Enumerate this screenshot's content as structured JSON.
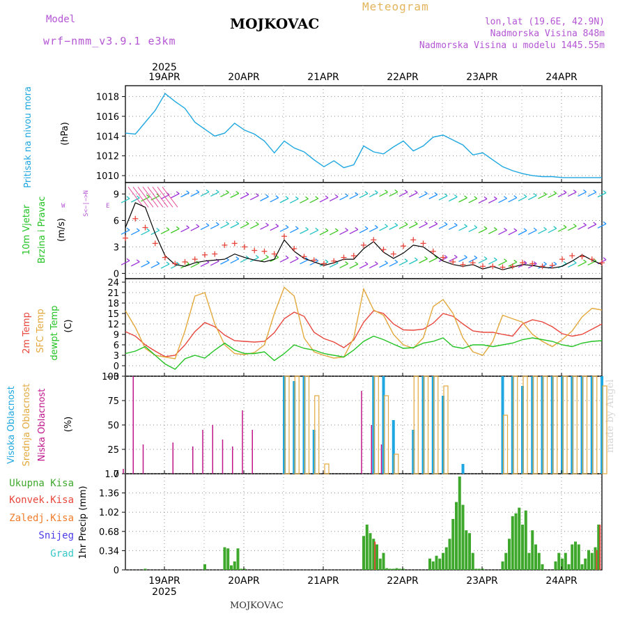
{
  "header": {
    "model_label": "Model",
    "model_name": "wrf−nmm_v3.9.1  e3km",
    "station": "MOJKOVAC",
    "meteogram_label": "Meteogram",
    "lonlat": "lon,lat (19.6E, 42.9N)",
    "elevation": "Nadmorska Visina 848m",
    "elevation_model": "Nadmorska Visina u modelu 1445.55m"
  },
  "footer": {
    "station": "MOJKOVAC",
    "watermark": "made by Angel"
  },
  "time_axis": {
    "year_label": "2025",
    "days": [
      "19APR",
      "20APR",
      "21APR",
      "22APR",
      "23APR",
      "24APR"
    ]
  },
  "colors": {
    "pressure": "#1ea7e0",
    "wind_speed": "#000000",
    "wind_gust": "#e8463c",
    "temp2m": "#e8463c",
    "sfc_temp": "#e3a83c",
    "dewpt": "#22c322",
    "cloud_high": "#1ea7e0",
    "cloud_mid": "#e3a83c",
    "cloud_low": "#c0168c",
    "precip_total": "#3ea82c",
    "precip_conv": "#e8463c",
    "precip_frozen": "#f07c2c",
    "snow": "#4a3ce8",
    "grad": "#37c7c7"
  },
  "panels": {
    "pressure": {
      "label1": "Pritisak na nivou mora",
      "unit": "(hPa)"
    },
    "wind": {
      "label1": "10m Vjetar",
      "label2": "Brzina i Pravac",
      "unit": "(m/s)",
      "compass_ns": "S<−|−>N",
      "compass_w": "W",
      "compass_e": "E"
    },
    "temp": {
      "label1": "2m Temp",
      "label2": "SFC Temp",
      "label3": "dewpt Temp",
      "unit": "(C)"
    },
    "cloud": {
      "label1": "Visoka Oblacnost",
      "label2": "Srednja Oblacnost",
      "label3": "Niska Oblacnost",
      "unit": "(%)"
    },
    "precip": {
      "label_unit": "1hr Precip (mm)",
      "legend": [
        "Ukupna Kisa",
        "Konvek.Kisa",
        "Zaledj.Kisa",
        "Snijeg",
        "Grad"
      ]
    }
  },
  "chart_data": [
    {
      "type": "line",
      "title": "Pritisak na nivou mora",
      "ylabel": "(hPa)",
      "ylim": [
        1009.3,
        1019.1
      ],
      "yticks": [
        1010,
        1012,
        1014,
        1016,
        1018
      ],
      "x_hours": [
        0,
        3,
        6,
        9,
        12,
        15,
        18,
        21,
        24,
        27,
        30,
        33,
        36,
        39,
        42,
        45,
        48,
        51,
        54,
        57,
        60,
        63,
        66,
        69,
        72,
        75,
        78,
        81,
        84,
        87,
        90,
        93,
        96,
        99,
        102,
        105,
        108,
        111,
        114,
        117,
        120,
        123,
        126,
        129,
        132,
        135,
        138,
        141,
        144
      ],
      "series": [
        {
          "name": "MSLP",
          "values": [
            1014.3,
            1014.2,
            1015.4,
            1016.6,
            1018.3,
            1017.5,
            1016.8,
            1015.4,
            1014.7,
            1014.0,
            1014.3,
            1015.3,
            1014.6,
            1014.2,
            1013.5,
            1012.3,
            1013.5,
            1012.8,
            1012.4,
            1011.6,
            1010.9,
            1011.5,
            1010.8,
            1011.1,
            1013.0,
            1012.4,
            1012.2,
            1012.9,
            1013.5,
            1012.5,
            1013.0,
            1013.9,
            1014.1,
            1013.6,
            1013.1,
            1012.1,
            1012.3,
            1011.6,
            1010.9,
            1010.5,
            1010.2,
            1010.0,
            1009.9,
            1009.9,
            1009.8,
            1009.8,
            1009.8,
            1009.8,
            1009.8
          ]
        }
      ]
    },
    {
      "type": "line",
      "title": "10m Vjetar Brzina i Pravac",
      "ylabel": "(m/s)",
      "ylim": [
        -0.6,
        10.3
      ],
      "yticks": [
        0,
        3,
        6,
        9
      ],
      "x_hours": [
        0,
        3,
        6,
        9,
        12,
        15,
        18,
        21,
        24,
        27,
        30,
        33,
        36,
        39,
        42,
        45,
        48,
        51,
        54,
        57,
        60,
        63,
        66,
        69,
        72,
        75,
        78,
        81,
        84,
        87,
        90,
        93,
        96,
        99,
        102,
        105,
        108,
        111,
        114,
        117,
        120,
        123,
        126,
        129,
        132,
        135,
        138,
        141,
        144
      ],
      "series": [
        {
          "name": "Brzina",
          "values": [
            5.2,
            8.0,
            7.5,
            4.5,
            2.0,
            1.0,
            0.8,
            1.2,
            1.4,
            1.5,
            1.6,
            2.2,
            1.8,
            1.5,
            1.3,
            1.6,
            3.8,
            2.5,
            1.7,
            1.3,
            0.9,
            1.2,
            1.6,
            1.6,
            2.8,
            3.6,
            2.4,
            1.7,
            2.3,
            3.2,
            3.0,
            2.2,
            1.4,
            1.0,
            0.8,
            1.0,
            0.5,
            0.8,
            0.4,
            0.7,
            1.0,
            0.9,
            0.7,
            0.6,
            0.8,
            1.4,
            2.1,
            1.5,
            1.0
          ]
        },
        {
          "name": "Udari",
          "values": [
            4.0,
            6.2,
            5.2,
            3.4,
            1.8,
            1.1,
            1.3,
            1.6,
            2.1,
            2.2,
            3.2,
            3.4,
            3.0,
            2.6,
            2.5,
            2.2,
            4.2,
            2.8,
            1.9,
            1.5,
            1.1,
            1.4,
            1.8,
            2.0,
            3.2,
            3.8,
            2.7,
            2.2,
            3.1,
            3.8,
            3.4,
            2.5,
            1.8,
            1.3,
            1.0,
            1.2,
            0.8,
            0.8,
            0.7,
            0.8,
            1.2,
            1.1,
            0.8,
            0.9,
            1.6,
            2.0,
            1.9,
            1.6,
            1.2
          ]
        }
      ]
    },
    {
      "type": "line",
      "title": "2m Temp / SFC Temp / dewpt Temp",
      "ylabel": "(C)",
      "ylim": [
        -3,
        25
      ],
      "yticks": [
        -3,
        0,
        3,
        6,
        9,
        12,
        15,
        18,
        21,
        24
      ],
      "x_hours": [
        0,
        3,
        6,
        9,
        12,
        15,
        18,
        21,
        24,
        27,
        30,
        33,
        36,
        39,
        42,
        45,
        48,
        51,
        54,
        57,
        60,
        63,
        66,
        69,
        72,
        75,
        78,
        81,
        84,
        87,
        90,
        93,
        96,
        99,
        102,
        105,
        108,
        111,
        114,
        117,
        120,
        123,
        126,
        129,
        132,
        135,
        138,
        141,
        144
      ],
      "series": [
        {
          "name": "2m Temp",
          "values": [
            9.8,
            8.5,
            6.0,
            4.2,
            2.6,
            3.0,
            6.0,
            9.8,
            12.4,
            11.2,
            8.8,
            7.2,
            7.0,
            6.8,
            7.0,
            9.5,
            13.5,
            15.4,
            14.2,
            9.6,
            7.8,
            6.8,
            5.2,
            7.4,
            12.5,
            15.8,
            15.0,
            12.0,
            10.3,
            10.2,
            10.5,
            12.2,
            15.0,
            14.2,
            12.0,
            10.0,
            9.6,
            9.6,
            9.0,
            8.5,
            12.0,
            13.2,
            12.6,
            11.2,
            9.2,
            8.5,
            9.0,
            10.5,
            12.0
          ]
        },
        {
          "name": "SFC Temp",
          "values": [
            15.8,
            11.0,
            5.0,
            3.0,
            2.5,
            2.0,
            10.0,
            20.0,
            21.0,
            12.0,
            6.0,
            3.5,
            3.2,
            3.8,
            6.0,
            15.0,
            22.5,
            20.0,
            8.0,
            4.0,
            3.0,
            2.2,
            2.5,
            8.0,
            22.0,
            16.0,
            14.5,
            9.0,
            6.0,
            5.0,
            8.0,
            17.0,
            19.0,
            15.0,
            8.0,
            4.0,
            3.0,
            7.0,
            14.5,
            13.5,
            12.5,
            9.0,
            7.0,
            5.5,
            7.5,
            10.0,
            14.0,
            16.5,
            16.0
          ]
        },
        {
          "name": "dewpt Temp",
          "values": [
            3.5,
            4.2,
            5.5,
            3.0,
            0.5,
            -1.0,
            2.0,
            3.0,
            2.2,
            4.5,
            6.5,
            4.5,
            3.5,
            3.5,
            4.0,
            1.5,
            3.5,
            6.0,
            5.0,
            4.5,
            3.5,
            3.0,
            2.5,
            4.5,
            7.0,
            8.5,
            7.5,
            6.2,
            5.0,
            5.2,
            6.5,
            7.0,
            8.0,
            5.5,
            5.0,
            6.0,
            6.0,
            5.5,
            6.0,
            6.5,
            7.5,
            8.0,
            7.5,
            7.0,
            6.0,
            5.5,
            6.5,
            7.0,
            7.2
          ]
        }
      ]
    },
    {
      "type": "bar",
      "title": "Oblacnost",
      "ylabel": "(%)",
      "ylim": [
        0,
        100
      ],
      "yticks": [
        0,
        25,
        50,
        75,
        100
      ],
      "x_hours": [
        0,
        3,
        6,
        9,
        12,
        15,
        18,
        21,
        24,
        27,
        30,
        33,
        36,
        39,
        42,
        45,
        48,
        51,
        54,
        57,
        60,
        63,
        66,
        69,
        72,
        75,
        78,
        81,
        84,
        87,
        90,
        93,
        96,
        99,
        102,
        105,
        108,
        111,
        114,
        117,
        120,
        123,
        126,
        129,
        132,
        135,
        138,
        141,
        144
      ],
      "series": [
        {
          "name": "Visoka Oblacnost",
          "values": [
            0,
            0,
            0,
            0,
            0,
            0,
            0,
            0,
            0,
            0,
            0,
            0,
            0,
            0,
            0,
            0,
            100,
            95,
            100,
            45,
            0,
            0,
            0,
            0,
            0,
            100,
            100,
            55,
            0,
            45,
            100,
            100,
            80,
            0,
            10,
            0,
            0,
            0,
            100,
            100,
            90,
            100,
            100,
            100,
            100,
            100,
            100,
            100,
            100
          ]
        },
        {
          "name": "Srednja Oblacnost",
          "values": [
            0,
            0,
            0,
            0,
            0,
            0,
            0,
            0,
            0,
            0,
            0,
            0,
            0,
            0,
            0,
            0,
            100,
            100,
            100,
            80,
            10,
            0,
            0,
            0,
            0,
            100,
            80,
            20,
            0,
            100,
            100,
            100,
            90,
            0,
            0,
            0,
            0,
            0,
            60,
            100,
            100,
            100,
            100,
            100,
            100,
            100,
            100,
            100,
            90
          ]
        },
        {
          "name": "Niska Oblacnost",
          "values": [
            5,
            100,
            30,
            0,
            0,
            32,
            0,
            28,
            45,
            50,
            35,
            28,
            65,
            45,
            0,
            0,
            0,
            0,
            0,
            0,
            0,
            0,
            0,
            0,
            85,
            50,
            30,
            0,
            0,
            0,
            0,
            0,
            0,
            0,
            0,
            0,
            0,
            0,
            0,
            0,
            0,
            0,
            0,
            0,
            0,
            0,
            0,
            0,
            0
          ]
        }
      ]
    },
    {
      "type": "bar",
      "title": "1hr Precip",
      "ylabel": "1hr Precip (mm)",
      "ylim": [
        0,
        1.7
      ],
      "yticks": [
        0,
        0.34,
        0.68,
        1.02,
        1.36,
        1.7
      ],
      "x_hours": [
        6,
        24,
        30,
        31,
        32,
        33,
        34,
        35,
        36,
        72,
        73,
        74,
        75,
        76,
        77,
        78,
        79,
        80,
        81,
        82,
        83,
        84,
        92,
        93,
        94,
        95,
        96,
        97,
        98,
        99,
        100,
        101,
        102,
        103,
        104,
        105,
        106,
        107,
        108,
        114,
        115,
        116,
        117,
        118,
        119,
        120,
        121,
        122,
        123,
        124,
        125,
        126,
        130,
        131,
        132,
        133,
        134,
        135,
        136,
        137,
        138,
        139,
        140,
        141,
        142,
        143
      ],
      "series": [
        {
          "name": "Ukupna Kisa",
          "values": [
            0.02,
            0.1,
            0.4,
            0.38,
            0.08,
            0.15,
            0.38,
            0.02,
            0.02,
            0.6,
            0.8,
            0.65,
            0.55,
            0.45,
            0.2,
            0.3,
            0.03,
            0.02,
            0.02,
            0.03,
            0.02,
            0.02,
            0.2,
            0.15,
            0.25,
            0.2,
            0.3,
            0.4,
            0.55,
            0.9,
            1.2,
            1.65,
            1.15,
            0.7,
            0.65,
            0.3,
            0.02,
            0.02,
            0.02,
            0.15,
            0.3,
            0.55,
            0.95,
            1.0,
            1.1,
            0.8,
            1.05,
            0.3,
            0.7,
            0.45,
            0.3,
            0.1,
            0.15,
            0.3,
            0.2,
            0.3,
            0.1,
            0.45,
            0.5,
            0.45,
            0.1,
            0.2,
            0.35,
            0.3,
            0.4,
            0.8
          ]
        },
        {
          "name": "Konvek.Kisa",
          "values": [
            0,
            0,
            0,
            0,
            0,
            0,
            0,
            0,
            0,
            0,
            0,
            0,
            0.5,
            0,
            0,
            0,
            0,
            0,
            0,
            0,
            0,
            0,
            0,
            0,
            0,
            0,
            0,
            0,
            0,
            0,
            0,
            0,
            0,
            0,
            0,
            0,
            0,
            0,
            0,
            0,
            0,
            0,
            0,
            0,
            0,
            0,
            0,
            0,
            0,
            0,
            0,
            0,
            0,
            0,
            0,
            0,
            0,
            0,
            0,
            0,
            0,
            0,
            0,
            0,
            0.35,
            0.8
          ]
        }
      ]
    }
  ]
}
